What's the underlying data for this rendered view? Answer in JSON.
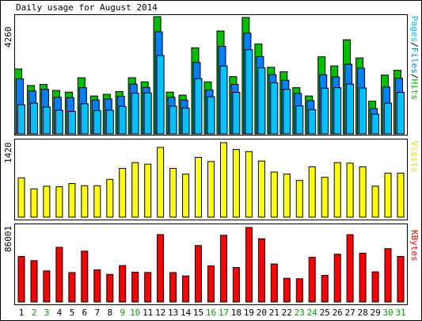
{
  "chart_data": {
    "type": "bar",
    "title": "Daily usage for August 2014",
    "categories": [
      "1",
      "2",
      "3",
      "4",
      "5",
      "6",
      "7",
      "8",
      "9",
      "10",
      "11",
      "12",
      "13",
      "14",
      "15",
      "16",
      "17",
      "18",
      "19",
      "20",
      "21",
      "22",
      "23",
      "24",
      "25",
      "26",
      "27",
      "28",
      "29",
      "30",
      "31"
    ],
    "weekend_days": [
      "2",
      "3",
      "9",
      "10",
      "16",
      "17",
      "23",
      "24",
      "30",
      "31"
    ],
    "panels": [
      {
        "name": "requests",
        "ylabel_parts": [
          {
            "text": "Pages",
            "color": "#00c0ff"
          },
          {
            "text": "/",
            "color": "#000000"
          },
          {
            "text": "Files",
            "color": "#0080ff"
          },
          {
            "text": "/",
            "color": "#000000"
          },
          {
            "text": "Hits",
            "color": "#00c000"
          }
        ],
        "ymax_label": "4260",
        "ymax": 4260,
        "series": [
          {
            "name": "Hits",
            "color": "#00c000",
            "values": [
              2360,
              1760,
              1800,
              1580,
              1520,
              2040,
              1380,
              1440,
              1540,
              2040,
              1890,
              4260,
              1520,
              1410,
              3130,
              1890,
              3740,
              2080,
              4230,
              3270,
              2420,
              2260,
              1680,
              1380,
              2800,
              2470,
              3420,
              2760,
              1190,
              2140,
              2310
            ]
          },
          {
            "name": "Files",
            "color": "#0080ff",
            "values": [
              2000,
              1560,
              1620,
              1330,
              1320,
              1680,
              1230,
              1270,
              1370,
              1810,
              1690,
              3710,
              1330,
              1230,
              2600,
              1600,
              3180,
              1800,
              3660,
              2810,
              2150,
              1950,
              1470,
              1210,
              2150,
              2070,
              2530,
              2390,
              920,
              1700,
              2020
            ]
          },
          {
            "name": "Pages",
            "color": "#00c0ff",
            "values": [
              1060,
              1120,
              980,
              860,
              820,
              1100,
              850,
              860,
              1000,
              1480,
              1490,
              2850,
              1010,
              940,
              2010,
              1350,
              2470,
              1510,
              3060,
              2400,
              1860,
              1620,
              1020,
              880,
              1660,
              1680,
              1810,
              1670,
              720,
              1120,
              1510
            ]
          }
        ]
      },
      {
        "name": "visits",
        "ylabel_parts": [
          {
            "text": "Visits",
            "color": "#e0e000"
          }
        ],
        "ymax_label": "1420",
        "ymax": 1420,
        "series": [
          {
            "name": "Visits",
            "color": "#ffff00",
            "values": [
              750,
              540,
              590,
              580,
              640,
              600,
              600,
              720,
              930,
              1040,
              1010,
              1330,
              930,
              820,
              1140,
              1060,
              1420,
              1290,
              1250,
              1070,
              860,
              820,
              700,
              960,
              760,
              1040,
              1030,
              960,
              590,
              840,
              840
            ]
          }
        ]
      },
      {
        "name": "kbytes",
        "ylabel_parts": [
          {
            "text": "KBytes",
            "color": "#ff0000"
          }
        ],
        "ymax_label": "86001",
        "ymax": 86001,
        "series": [
          {
            "name": "KBytes",
            "color": "#ff0000",
            "values": [
              52500,
              47700,
              35900,
              63100,
              33900,
              58600,
              37100,
              31800,
              42000,
              34400,
              34000,
              77800,
              33900,
              30000,
              65100,
              41600,
              76900,
              39800,
              86000,
              73000,
              43800,
              27300,
              26800,
              51500,
              30700,
              55200,
              77700,
              56400,
              34800,
              61600,
              52600
            ]
          }
        ]
      }
    ]
  }
}
